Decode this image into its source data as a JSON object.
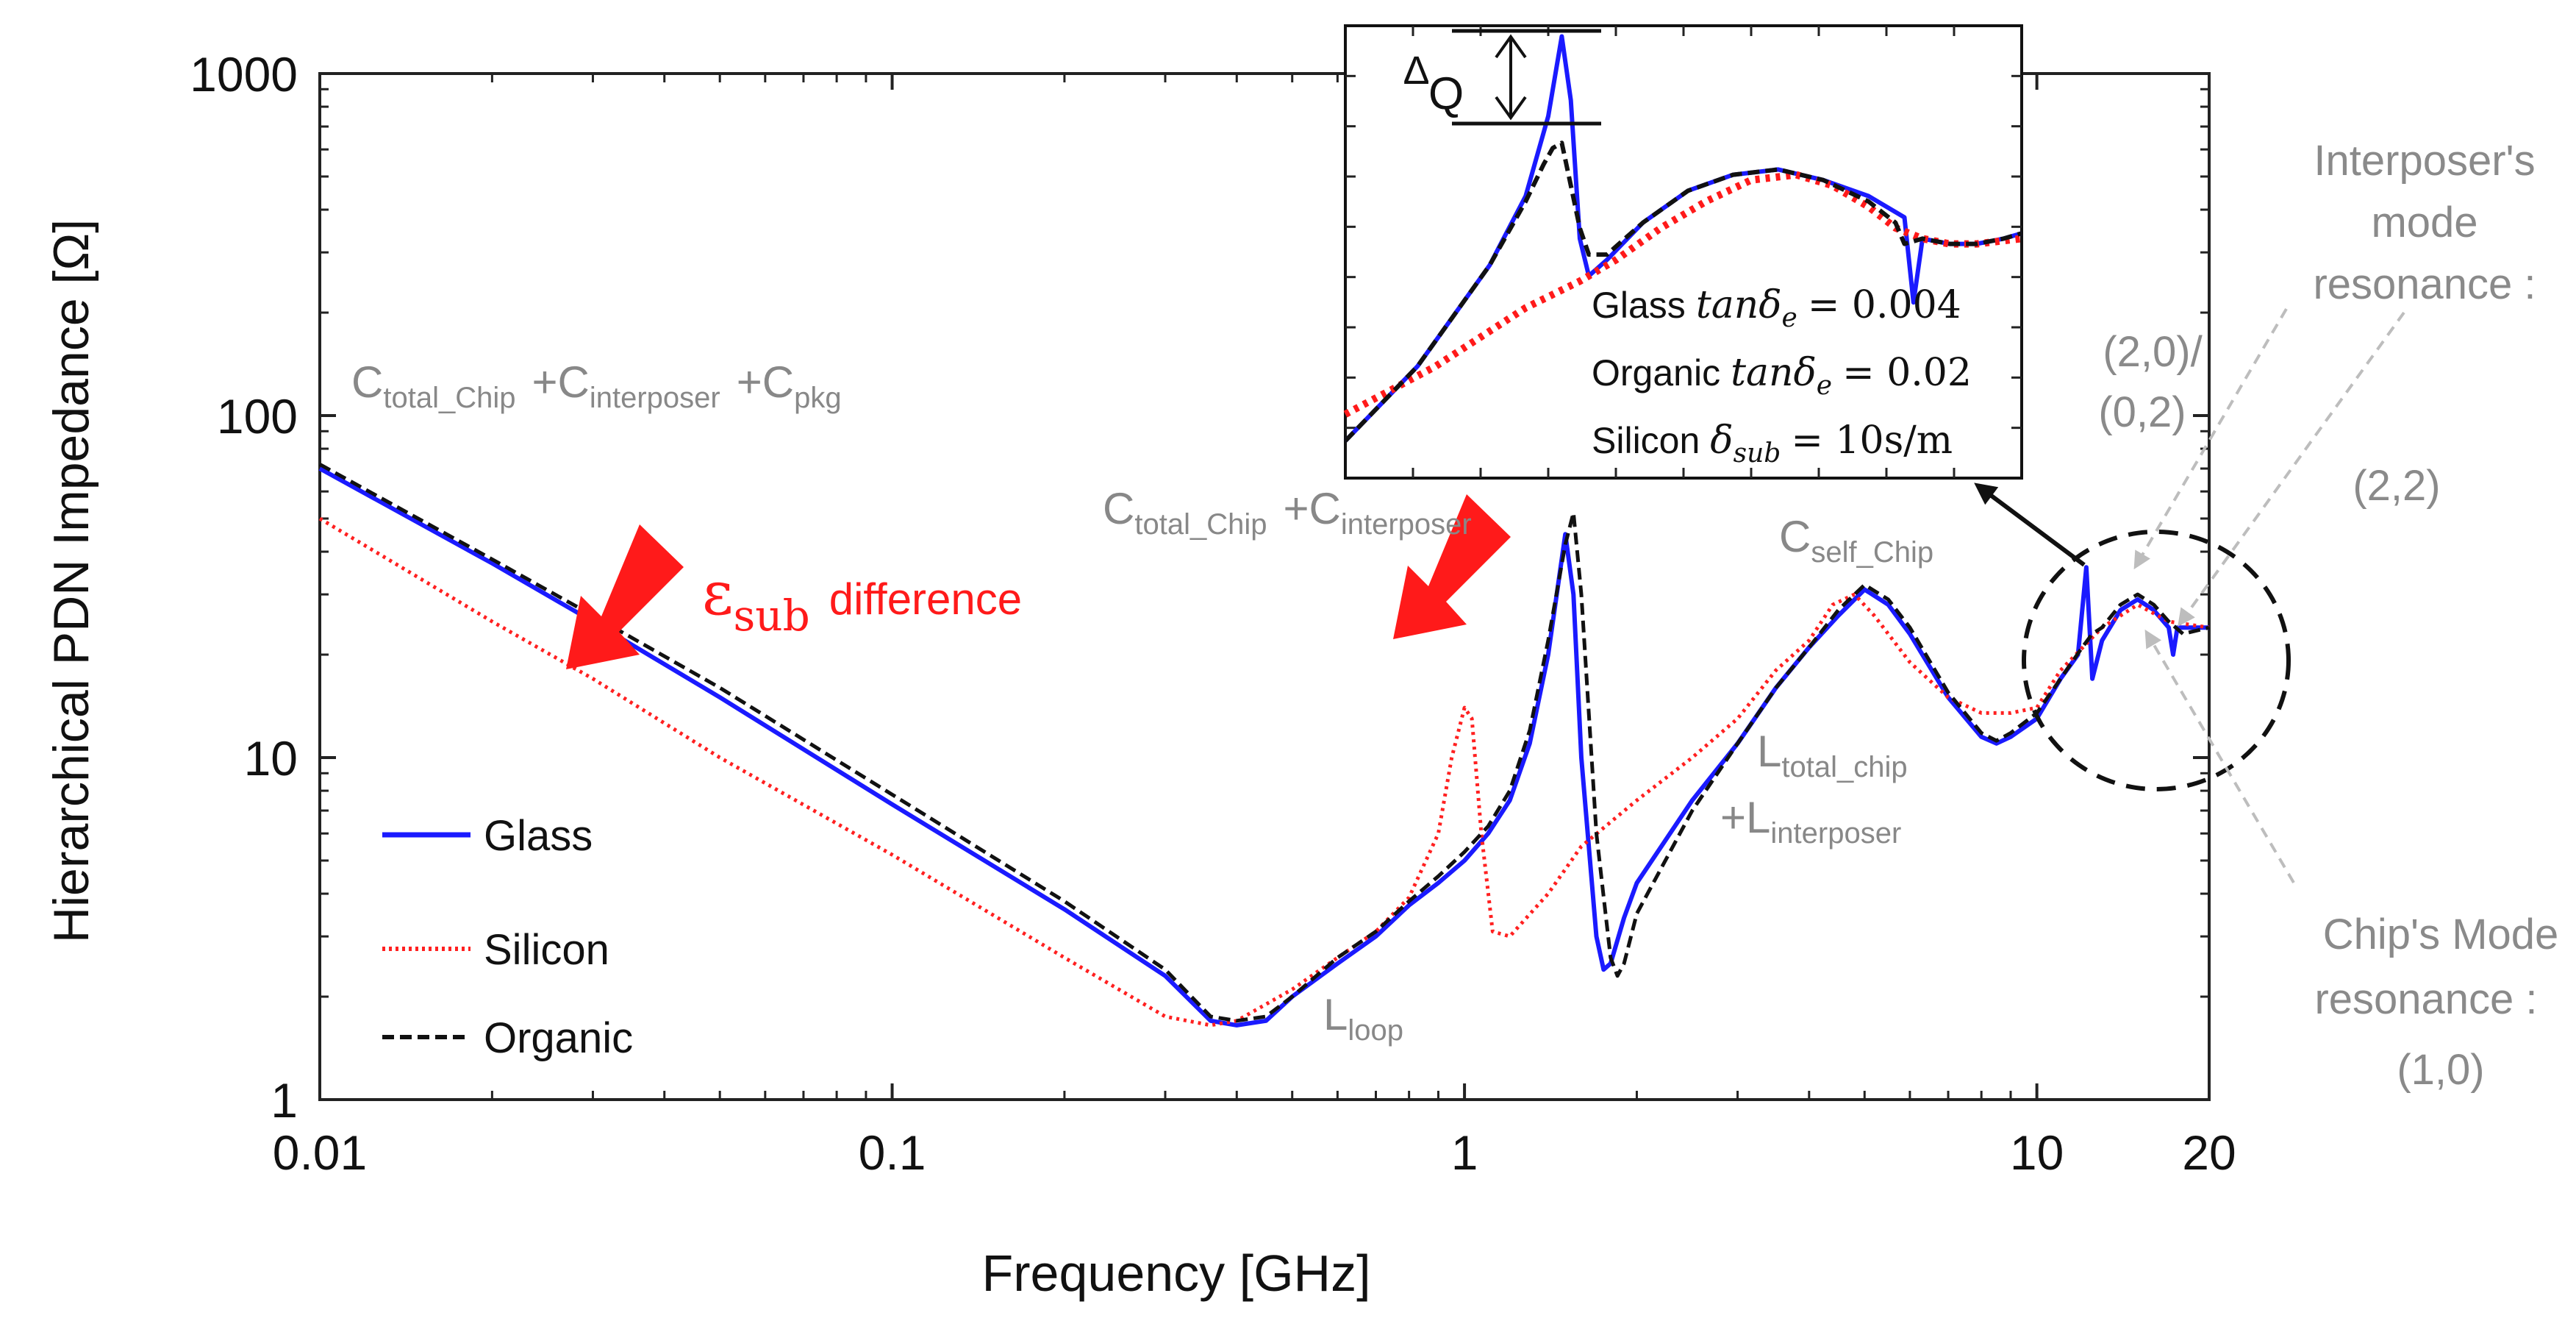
{
  "chart_data": {
    "type": "line",
    "title": "",
    "xlabel": "Frequency [GHz]",
    "ylabel": "Hierarchical PDN Impedance [Ω]",
    "xscale": "log",
    "yscale": "log",
    "xlim": [
      0.01,
      20
    ],
    "ylim": [
      1,
      1000
    ],
    "xticks": [
      {
        "value": 0.01,
        "label": "0.01"
      },
      {
        "value": 0.1,
        "label": "0.1"
      },
      {
        "value": 1,
        "label": "1"
      },
      {
        "value": 10,
        "label": "10"
      },
      {
        "value": 20,
        "label": "20"
      }
    ],
    "yticks": [
      {
        "value": 1,
        "label": "1"
      },
      {
        "value": 10,
        "label": "10"
      },
      {
        "value": 100,
        "label": "100"
      },
      {
        "value": 1000,
        "label": "1000"
      }
    ],
    "series": [
      {
        "name": "Glass",
        "color": "#1a1aff",
        "dash": "solid",
        "points": [
          [
            0.01,
            70
          ],
          [
            0.02,
            37
          ],
          [
            0.03,
            25
          ],
          [
            0.05,
            15
          ],
          [
            0.1,
            7.3
          ],
          [
            0.2,
            3.6
          ],
          [
            0.3,
            2.3
          ],
          [
            0.36,
            1.7
          ],
          [
            0.4,
            1.65
          ],
          [
            0.45,
            1.7
          ],
          [
            0.5,
            2.0
          ],
          [
            0.6,
            2.5
          ],
          [
            0.7,
            3.0
          ],
          [
            0.8,
            3.7
          ],
          [
            0.9,
            4.3
          ],
          [
            1.0,
            5.0
          ],
          [
            1.1,
            6.0
          ],
          [
            1.2,
            7.5
          ],
          [
            1.3,
            11
          ],
          [
            1.4,
            20
          ],
          [
            1.5,
            45
          ],
          [
            1.55,
            30
          ],
          [
            1.6,
            10
          ],
          [
            1.7,
            3.0
          ],
          [
            1.75,
            2.4
          ],
          [
            1.8,
            2.5
          ],
          [
            1.9,
            3.4
          ],
          [
            2.0,
            4.3
          ],
          [
            2.5,
            7.5
          ],
          [
            3.0,
            11
          ],
          [
            3.5,
            16
          ],
          [
            4.0,
            21
          ],
          [
            4.5,
            26
          ],
          [
            5.0,
            31
          ],
          [
            5.5,
            28
          ],
          [
            6.0,
            23
          ],
          [
            7.0,
            15
          ],
          [
            8.0,
            11.5
          ],
          [
            8.5,
            11
          ],
          [
            9.0,
            11.5
          ],
          [
            10.0,
            13
          ],
          [
            11.0,
            17
          ],
          [
            11.8,
            20
          ],
          [
            12.2,
            36
          ],
          [
            12.5,
            17
          ],
          [
            13.0,
            22
          ],
          [
            14.0,
            27
          ],
          [
            15.0,
            29
          ],
          [
            16.0,
            27
          ],
          [
            17.0,
            24
          ],
          [
            17.3,
            20
          ],
          [
            17.6,
            24
          ],
          [
            20.0,
            24
          ]
        ]
      },
      {
        "name": "Silicon",
        "color": "#ff2020",
        "dash": "dotted",
        "points": [
          [
            0.01,
            50
          ],
          [
            0.02,
            25
          ],
          [
            0.03,
            17
          ],
          [
            0.05,
            10
          ],
          [
            0.1,
            5.2
          ],
          [
            0.2,
            2.6
          ],
          [
            0.3,
            1.75
          ],
          [
            0.36,
            1.65
          ],
          [
            0.4,
            1.7
          ],
          [
            0.5,
            2.1
          ],
          [
            0.6,
            2.6
          ],
          [
            0.7,
            3.1
          ],
          [
            0.8,
            3.9
          ],
          [
            0.9,
            6.0
          ],
          [
            0.95,
            10
          ],
          [
            1.0,
            14
          ],
          [
            1.03,
            13
          ],
          [
            1.07,
            6.0
          ],
          [
            1.12,
            3.1
          ],
          [
            1.2,
            3.0
          ],
          [
            1.4,
            4.0
          ],
          [
            1.6,
            5.5
          ],
          [
            2.0,
            7.5
          ],
          [
            2.5,
            10
          ],
          [
            3.0,
            13
          ],
          [
            3.5,
            18
          ],
          [
            4.0,
            22
          ],
          [
            4.4,
            28
          ],
          [
            4.8,
            30
          ],
          [
            5.2,
            26
          ],
          [
            6.0,
            19
          ],
          [
            7.0,
            15
          ],
          [
            8.0,
            13.5
          ],
          [
            9.0,
            13.5
          ],
          [
            10.0,
            14
          ],
          [
            11.0,
            18
          ],
          [
            13.0,
            24
          ],
          [
            15.0,
            28
          ],
          [
            17.0,
            25
          ],
          [
            20.0,
            24
          ]
        ]
      },
      {
        "name": "Organic",
        "color": "#111111",
        "dash": "dashed",
        "points": [
          [
            0.01,
            72
          ],
          [
            0.02,
            38
          ],
          [
            0.03,
            26
          ],
          [
            0.05,
            16
          ],
          [
            0.1,
            7.8
          ],
          [
            0.2,
            3.8
          ],
          [
            0.3,
            2.4
          ],
          [
            0.36,
            1.75
          ],
          [
            0.4,
            1.7
          ],
          [
            0.45,
            1.75
          ],
          [
            0.5,
            2.0
          ],
          [
            0.6,
            2.6
          ],
          [
            0.7,
            3.1
          ],
          [
            0.8,
            3.8
          ],
          [
            0.9,
            4.5
          ],
          [
            1.0,
            5.3
          ],
          [
            1.1,
            6.3
          ],
          [
            1.2,
            8.0
          ],
          [
            1.3,
            12
          ],
          [
            1.4,
            22
          ],
          [
            1.5,
            42
          ],
          [
            1.55,
            52
          ],
          [
            1.6,
            30
          ],
          [
            1.7,
            6.0
          ],
          [
            1.8,
            2.6
          ],
          [
            1.85,
            2.3
          ],
          [
            1.9,
            2.5
          ],
          [
            2.0,
            3.5
          ],
          [
            2.5,
            7.0
          ],
          [
            3.0,
            11
          ],
          [
            3.5,
            16
          ],
          [
            4.0,
            21
          ],
          [
            4.5,
            27
          ],
          [
            5.0,
            32
          ],
          [
            5.5,
            29
          ],
          [
            6.0,
            24
          ],
          [
            7.0,
            15.5
          ],
          [
            8.0,
            11.8
          ],
          [
            8.5,
            11.2
          ],
          [
            9.0,
            11.8
          ],
          [
            10.0,
            13.5
          ],
          [
            11.0,
            17
          ],
          [
            12.0,
            21
          ],
          [
            12.5,
            23
          ],
          [
            13.0,
            24
          ],
          [
            14.0,
            28
          ],
          [
            15.0,
            30
          ],
          [
            16.0,
            28
          ],
          [
            17.0,
            25
          ],
          [
            18.0,
            23
          ],
          [
            20.0,
            24
          ]
        ]
      }
    ],
    "legend": {
      "position": "bottom-left",
      "entries": [
        "Glass",
        "Silicon",
        "Organic"
      ]
    },
    "annotations": [
      {
        "id": "ann-cap-all",
        "base": "C",
        "sub": "total_Chip",
        "rest": [
          {
            "t": "+C",
            "s": "interposer"
          },
          {
            "t": "+C",
            "s": "pkg"
          }
        ],
        "color": "#888888"
      },
      {
        "id": "ann-cap-chip-interposer",
        "base": "C",
        "sub": "total_Chip",
        "rest": [
          {
            "t": "+C",
            "s": "interposer"
          }
        ],
        "color": "#888888"
      },
      {
        "id": "ann-cself",
        "base": "C",
        "sub": "self_Chip",
        "rest": [],
        "color": "#888888"
      },
      {
        "id": "ann-ltotal",
        "base": "L",
        "sub": "total_chip",
        "rest": [],
        "color": "#888888"
      },
      {
        "id": "ann-linterposer",
        "base": "+L",
        "sub": "interposer",
        "rest": [],
        "color": "#888888"
      },
      {
        "id": "ann-lloop",
        "base": "L",
        "sub": "loop",
        "rest": [],
        "color": "#888888"
      }
    ],
    "eps_label": {
      "symbol": "ε",
      "sub": "sub",
      "text": "difference",
      "color": "#ff1a1a"
    },
    "mode_labels": {
      "interposer": [
        "Interposer's",
        "mode",
        "resonance :"
      ],
      "interposer_modes": [
        "(2,0)/",
        "(0,2)",
        "(2,2)"
      ],
      "chip": [
        "Chip's Mode",
        "resonance :",
        "(1,0)"
      ]
    },
    "inset": {
      "delta_q": {
        "symbol": "∆",
        "text": "Q"
      },
      "materials": [
        {
          "name": "Glass",
          "prefix": "tanδ",
          "sub": "e",
          "eq": "= 0.004"
        },
        {
          "name": "Organic",
          "prefix": "tanδ",
          "sub": "e",
          "eq": "= 0.02"
        },
        {
          "name": "Silicon",
          "prefix": "δ",
          "sub": "sub",
          "eq": "= 10s/m"
        }
      ],
      "zoom_range": {
        "x": [
          1.2,
          3.0
        ],
        "y": [
          20,
          60
        ]
      },
      "series": [
        {
          "name": "Glass",
          "color": "#1a1aff",
          "dash": "solid",
          "points": [
            [
              0,
              22
            ],
            [
              8,
              36
            ],
            [
              16,
              55
            ],
            [
              20,
              68
            ],
            [
              22.5,
              83
            ],
            [
              24,
              98
            ],
            [
              25,
              86
            ],
            [
              26,
              60
            ],
            [
              27,
              53
            ],
            [
              29,
              56
            ],
            [
              33,
              63
            ],
            [
              38,
              69
            ],
            [
              43,
              72
            ],
            [
              48,
              73
            ],
            [
              53,
              71
            ],
            [
              58,
              68
            ],
            [
              62,
              64
            ],
            [
              63,
              48
            ],
            [
              64,
              60
            ],
            [
              67,
              59
            ],
            [
              70,
              59
            ],
            [
              73,
              60
            ],
            [
              75,
              61
            ]
          ]
        },
        {
          "name": "Silicon",
          "color": "#ff1a1a",
          "dash": "dotted",
          "points": [
            [
              0,
              27
            ],
            [
              10,
              36
            ],
            [
              20,
              47
            ],
            [
              26,
              52
            ],
            [
              30,
              56
            ],
            [
              35,
              62
            ],
            [
              40,
              67
            ],
            [
              45,
              71
            ],
            [
              50,
              72
            ],
            [
              54,
              70
            ],
            [
              58,
              66
            ],
            [
              61,
              62
            ],
            [
              64,
              60
            ],
            [
              67,
              59
            ],
            [
              70,
              59
            ],
            [
              75,
              60
            ]
          ]
        },
        {
          "name": "Organic",
          "color": "#111111",
          "dash": "dashed",
          "points": [
            [
              0,
              22
            ],
            [
              8,
              36
            ],
            [
              16,
              55
            ],
            [
              20,
              67
            ],
            [
              22,
              74
            ],
            [
              23,
              77
            ],
            [
              24,
              78
            ],
            [
              25,
              70
            ],
            [
              26,
              62
            ],
            [
              27,
              57
            ],
            [
              29,
              57
            ],
            [
              33,
              63
            ],
            [
              38,
              69
            ],
            [
              43,
              72
            ],
            [
              48,
              73
            ],
            [
              53,
              71
            ],
            [
              58,
              67
            ],
            [
              61,
              63
            ],
            [
              62,
              59
            ],
            [
              64,
              60
            ],
            [
              67,
              59
            ],
            [
              70,
              59
            ],
            [
              73,
              60
            ],
            [
              75,
              61
            ]
          ]
        }
      ]
    }
  }
}
